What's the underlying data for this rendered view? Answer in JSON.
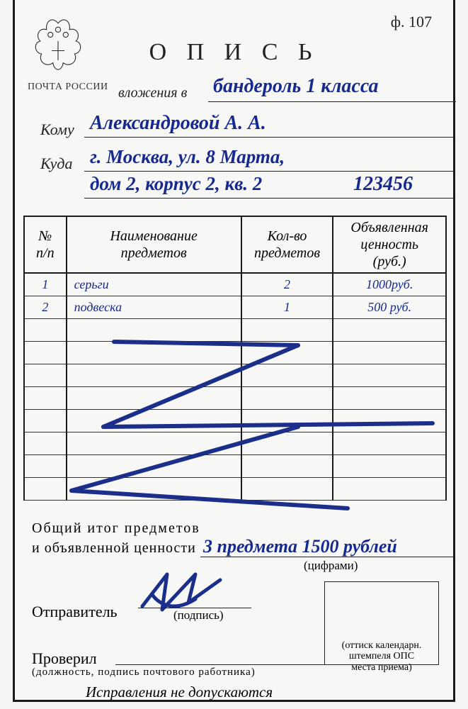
{
  "form": {
    "number": "ф. 107",
    "title": "О П И С Ь",
    "postLabel": "ПОЧТА РОССИИ",
    "enclosureLabel": "вложения в",
    "packageType": "бандероль 1 класса",
    "recipientLabel": "Кому",
    "recipient": "Александровой А. А.",
    "addressLabel": "Куда",
    "addressLine1": "г. Москва, ул. 8 Марта,",
    "addressLine2": "дом 2, корпус 2, кв. 2",
    "postcode": "123456"
  },
  "table": {
    "headers": {
      "num": "№\nп/п",
      "name": "Наименование\nпредметов",
      "qty": "Кол-во\nпредметов",
      "value": "Объявленная\nценность\n(руб.)"
    },
    "rows": [
      {
        "n": "1",
        "name": "серьги",
        "qty": "2",
        "value": "1000руб."
      },
      {
        "n": "2",
        "name": "подвеска",
        "qty": "1",
        "value": "500 руб."
      }
    ],
    "emptyRows": 8
  },
  "totals": {
    "line1": "Общий  итог  предметов",
    "line2": "и  объявленной  ценности",
    "value": "3 предмета  1500 рублей",
    "sublabel": "(цифрами)"
  },
  "sender": {
    "label": "Отправитель",
    "sub": "(подпись)"
  },
  "checker": {
    "label": "Проверил",
    "sub": "(должность,  подпись  почтового  работника)"
  },
  "stamp": {
    "line1": "(оттиск календарн.",
    "line2": "штемпеля ОПС",
    "line3": "места приема)"
  },
  "footer": "Исправления не допускаются",
  "colors": {
    "ink": "#16298f",
    "print": "#1a1a1a",
    "paper": "#f7f8f6"
  },
  "crossOut": {
    "strokeColor": "#1b2f8a",
    "strokeWidth": 6,
    "paths": [
      "M110,30 L370,35",
      "M370,35 L95,150",
      "M95,150 L560,145",
      "M50,240 L370,150",
      "M50,240 L440,265"
    ]
  },
  "signature": {
    "strokeColor": "#1b2f8a",
    "strokeWidth": 5,
    "paths": [
      "M20,55 L55,10 L48,60 L95,10 L85,50 L130,18",
      "M35,40 C35,40 55,70 95,45"
    ]
  }
}
